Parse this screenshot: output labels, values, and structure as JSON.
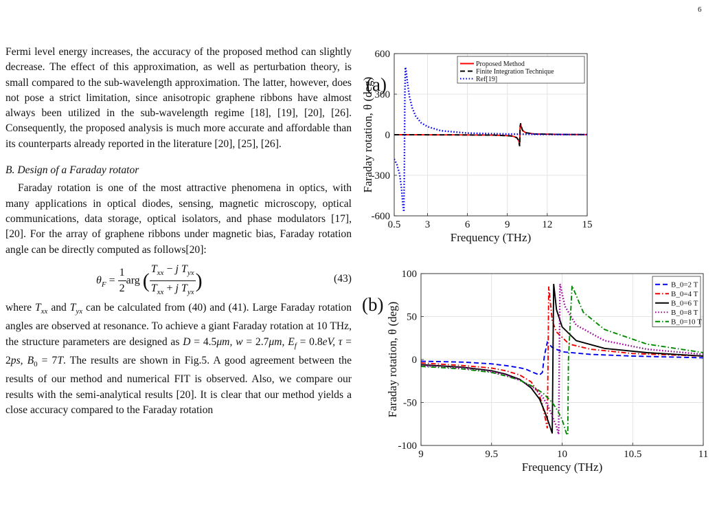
{
  "page_number": "6",
  "text": {
    "para1": "Fermi level energy increases, the accuracy of the proposed method can slightly decrease. The effect of this approximation, as well as perturbation theory, is small compared to the sub-wavelength approximation. The latter, however, does not pose a strict limitation, since anisotropic graphene ribbons have almost always been utilized in the sub-wavelength regime [18], [19], [20], [26]. Consequently, the proposed analysis is much more accurate and affordable than its counterparts already reported in the literature [20], [25], [26].",
    "section_heading": "B. Design of a Faraday rotator",
    "para2": "Faraday rotation is one of the most attractive phenomena in optics, with many applications in optical diodes, sensing, magnetic microscopy, optical communications, data storage, optical isolators, and phase modulators [17], [20]. For the array of graphene ribbons under magnetic bias, Faraday rotation angle can be directly computed as follows[20]:",
    "eq_number": "(43)",
    "para3_a": "where ",
    "para3_b": " and ",
    "para3_c": " can be calculated from (40) and (41). Large Faraday rotation angles are observed at resonance. To achieve a giant Faraday rotation at 10 THz, the structure parameters are designed as ",
    "para3_params": "D = 4.5μm, w = 2.7μm, E_f = 0.8eV, τ = 2ps, B_0 = 7T",
    "para3_d": ". The results are shown in Fig.5. A good agreement between the results of our method and numerical FIT is observed. Also, we compare our results with the semi-analytical results [20]. It is clear that our method yields a close accuracy compared to the Faraday rotation"
  },
  "chart_data": [
    {
      "type": "line",
      "panel_label": "(a)",
      "xlabel": "Frequency (THz)",
      "ylabel": "Faraday rotation, θ (deg)",
      "xlim": [
        0.5,
        15
      ],
      "ylim": [
        -600,
        600
      ],
      "xticks": [
        "0.5",
        "3",
        "6",
        "9",
        "12",
        "15"
      ],
      "yticks": [
        "-600",
        "-300",
        "0",
        "300",
        "600"
      ],
      "grid": true,
      "legend_position": "top-right",
      "series": [
        {
          "name": "Proposed Method",
          "color": "#ff0000",
          "style": "solid",
          "x": [
            0.5,
            5,
            8,
            9.3,
            9.7,
            9.82,
            9.88,
            9.92,
            9.94,
            9.96,
            10.0,
            10.05,
            10.15,
            10.4,
            11,
            13,
            15
          ],
          "y": [
            0,
            -1,
            -3,
            -8,
            -20,
            -35,
            -55,
            -80,
            -50,
            60,
            80,
            55,
            30,
            14,
            6,
            2,
            1
          ]
        },
        {
          "name": "Finite Integration Technique",
          "color": "#000000",
          "style": "dashed",
          "x": [
            0.5,
            5,
            8,
            9.3,
            9.7,
            9.82,
            9.88,
            9.92,
            9.94,
            9.96,
            10.0,
            10.05,
            10.15,
            10.4,
            11,
            13,
            15
          ],
          "y": [
            0,
            -1,
            -3,
            -9,
            -22,
            -38,
            -60,
            -85,
            -55,
            65,
            85,
            60,
            32,
            15,
            6,
            2,
            1
          ]
        },
        {
          "name": "Ref[19]",
          "color": "#0000ee",
          "style": "dotted",
          "x": [
            0.5,
            0.7,
            0.9,
            1.05,
            1.15,
            1.22,
            1.26,
            1.3,
            1.34,
            1.4,
            1.5,
            1.65,
            1.85,
            2.1,
            2.5,
            3,
            4,
            6,
            9,
            12,
            15
          ],
          "y": [
            -180,
            -220,
            -290,
            -400,
            -520,
            -570,
            -300,
            300,
            500,
            470,
            380,
            280,
            200,
            140,
            90,
            60,
            30,
            12,
            5,
            2,
            1
          ]
        }
      ]
    },
    {
      "type": "line",
      "panel_label": "(b)",
      "xlabel": "Frequency (THz)",
      "ylabel": "Faraday rotation, θ (deg)",
      "xlim": [
        9,
        11
      ],
      "ylim": [
        -100,
        100
      ],
      "xticks": [
        "9",
        "9.5",
        "10",
        "10.5",
        "11"
      ],
      "yticks": [
        "-100",
        "-50",
        "0",
        "50",
        "100"
      ],
      "grid": true,
      "legend_position": "top-right",
      "series": [
        {
          "name": "B_0=2 T",
          "color": "#0000ee",
          "style": "dashed",
          "x": [
            9,
            9.3,
            9.5,
            9.6,
            9.68,
            9.74,
            9.78,
            9.81,
            9.84,
            9.86,
            9.875,
            9.895,
            9.93,
            10.0,
            10.2,
            10.5,
            11
          ],
          "y": [
            -2,
            -3,
            -5,
            -7,
            -9,
            -11,
            -14,
            -16,
            -18,
            -15,
            5,
            20,
            14,
            9,
            6,
            4,
            2
          ]
        },
        {
          "name": "B_0=4 T",
          "color": "#ee0000",
          "style": "dashdot",
          "x": [
            9,
            9.3,
            9.5,
            9.6,
            9.7,
            9.78,
            9.83,
            9.86,
            9.88,
            9.895,
            9.9,
            9.905,
            9.93,
            9.96,
            10.05,
            10.2,
            10.5,
            11
          ],
          "y": [
            -4,
            -7,
            -10,
            -13,
            -18,
            -26,
            -38,
            -52,
            -68,
            -80,
            0,
            85,
            45,
            32,
            18,
            12,
            7,
            4
          ]
        },
        {
          "name": "B_0=6 T",
          "color": "#000000",
          "style": "solid",
          "x": [
            9,
            9.3,
            9.5,
            9.6,
            9.7,
            9.78,
            9.84,
            9.88,
            9.91,
            9.93,
            9.935,
            9.94,
            9.96,
            10.0,
            10.1,
            10.3,
            10.6,
            11
          ],
          "y": [
            -6,
            -9,
            -13,
            -17,
            -23,
            -33,
            -46,
            -62,
            -76,
            -86,
            0,
            88,
            58,
            38,
            22,
            13,
            8,
            4
          ]
        },
        {
          "name": "B_0=8 T",
          "color": "#990099",
          "style": "dotted",
          "x": [
            9,
            9.3,
            9.5,
            9.6,
            9.7,
            9.8,
            9.86,
            9.9,
            9.93,
            9.96,
            9.975,
            9.98,
            9.985,
            10.02,
            10.1,
            10.3,
            10.6,
            11
          ],
          "y": [
            -7,
            -10,
            -14,
            -18,
            -24,
            -33,
            -43,
            -54,
            -66,
            -78,
            -87,
            0,
            88,
            62,
            40,
            22,
            12,
            6
          ]
        },
        {
          "name": "B_0=10 T",
          "color": "#008800",
          "style": "dashdot",
          "x": [
            9,
            9.3,
            9.5,
            9.6,
            9.7,
            9.8,
            9.87,
            9.93,
            9.97,
            10.0,
            10.03,
            10.04,
            10.045,
            10.07,
            10.15,
            10.3,
            10.6,
            11
          ],
          "y": [
            -8,
            -11,
            -15,
            -19,
            -24,
            -32,
            -40,
            -50,
            -60,
            -70,
            -86,
            -88,
            0,
            86,
            55,
            35,
            18,
            8
          ]
        }
      ]
    }
  ]
}
